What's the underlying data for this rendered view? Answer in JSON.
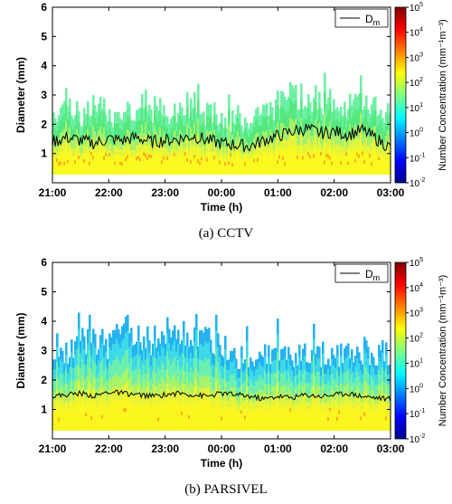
{
  "chart_data": [
    {
      "type": "heatmap",
      "caption": "(a) CCTV",
      "xlabel": "Time (h)",
      "ylabel": "Diameter (mm)",
      "xticks": [
        "21:00",
        "22:00",
        "23:00",
        "00:00",
        "01:00",
        "02:00",
        "03:00"
      ],
      "xlim_hours": [
        0,
        6
      ],
      "ylim": [
        0,
        6
      ],
      "yticks": [
        1,
        2,
        3,
        4,
        5,
        6
      ],
      "colorbar": {
        "label": "Number Concentration (mm⁻¹m⁻³)",
        "scale": "log",
        "range": [
          0.01,
          100000
        ],
        "tick_exponents": [
          -2,
          -1,
          0,
          1,
          2,
          3,
          4,
          5
        ]
      },
      "legend": {
        "entry": "D",
        "subscript": "m",
        "position": "top-right"
      },
      "series": [
        {
          "name": "Dm",
          "time_h": [
            0,
            0.25,
            0.5,
            0.75,
            1,
            1.25,
            1.5,
            1.75,
            2,
            2.25,
            2.5,
            2.75,
            3,
            3.25,
            3.5,
            3.75,
            4,
            4.25,
            4.5,
            4.75,
            5,
            5.25,
            5.5,
            5.75,
            6
          ],
          "values": [
            1.4,
            1.55,
            1.45,
            1.35,
            1.5,
            1.45,
            1.55,
            1.4,
            1.45,
            1.5,
            1.6,
            1.45,
            1.35,
            1.3,
            1.25,
            1.45,
            1.6,
            1.75,
            1.85,
            1.7,
            1.75,
            1.65,
            1.8,
            1.5,
            1.2
          ]
        }
      ],
      "envelope_max_mm": [
        2.4,
        2.7,
        2.3,
        2.6,
        2.3,
        2.5,
        2.6,
        2.5,
        2.4,
        2.5,
        2.7,
        2.3,
        2.3,
        2.2,
        2.2,
        2.4,
        2.7,
        3.0,
        3.0,
        2.8,
        2.9,
        2.6,
        2.9,
        2.6,
        2.2
      ]
    },
    {
      "type": "heatmap",
      "caption": "(b) PARSIVEL",
      "xlabel": "Time (h)",
      "ylabel": "Diameter (mm)",
      "xticks": [
        "21:00",
        "22:00",
        "23:00",
        "00:00",
        "01:00",
        "02:00",
        "03:00"
      ],
      "xlim_hours": [
        0,
        6
      ],
      "ylim": [
        0,
        6
      ],
      "yticks": [
        1,
        2,
        3,
        4,
        5,
        6
      ],
      "colorbar": {
        "label": "Number Concentration (mm⁻¹m⁻³)",
        "scale": "log",
        "range": [
          0.01,
          100000
        ],
        "tick_exponents": [
          -2,
          -1,
          0,
          1,
          2,
          3,
          4,
          5
        ]
      },
      "legend": {
        "entry": "D",
        "subscript": "m",
        "position": "top-right"
      },
      "series": [
        {
          "name": "Dm",
          "time_h": [
            0,
            0.25,
            0.5,
            0.75,
            1,
            1.25,
            1.5,
            1.75,
            2,
            2.25,
            2.5,
            2.75,
            3,
            3.25,
            3.5,
            3.75,
            4,
            4.25,
            4.5,
            4.75,
            5,
            5.25,
            5.5,
            5.75,
            6
          ],
          "values": [
            1.45,
            1.5,
            1.55,
            1.45,
            1.6,
            1.55,
            1.5,
            1.45,
            1.5,
            1.55,
            1.5,
            1.45,
            1.55,
            1.5,
            1.45,
            1.35,
            1.45,
            1.4,
            1.5,
            1.45,
            1.5,
            1.55,
            1.45,
            1.4,
            1.35
          ]
        }
      ],
      "envelope_max_mm": [
        3.2,
        3.0,
        3.4,
        3.3,
        3.2,
        3.8,
        3.6,
        3.3,
        3.7,
        3.4,
        3.3,
        3.4,
        3.3,
        2.8,
        2.9,
        2.8,
        3.0,
        2.9,
        2.9,
        2.8,
        2.9,
        3.0,
        3.0,
        2.9,
        3.0
      ]
    }
  ]
}
